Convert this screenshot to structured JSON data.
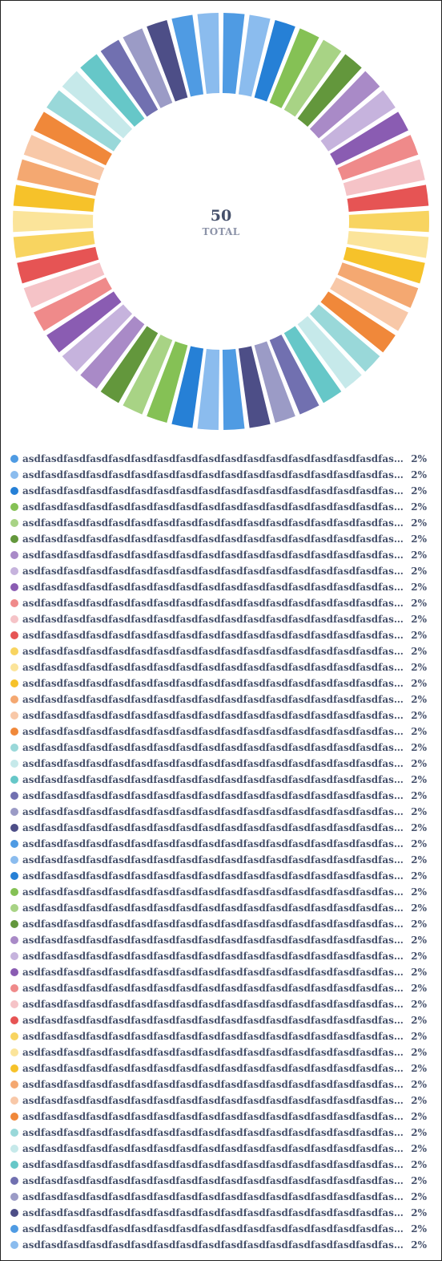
{
  "center": {
    "total": "50",
    "label": "TOTAL"
  },
  "palette": [
    "#4f9be3",
    "#8bbcee",
    "#2680d6",
    "#85c155",
    "#a8d385",
    "#63973c",
    "#a98ac7",
    "#c6b3dd",
    "#8a5cb2",
    "#ef8a8a",
    "#f5c3c7",
    "#e65454",
    "#f8d460",
    "#fbe49a",
    "#f6c22a",
    "#f4a871",
    "#f8c8a8",
    "#f0883a",
    "#99d8d9",
    "#c6e9ea",
    "#66c7c8",
    "#7170b0",
    "#9b9bc6",
    "#4d4e87"
  ],
  "chart_data": {
    "type": "pie",
    "variant": "donut",
    "title": "",
    "categories": [
      "asdfasdfasdfasdfasdfasdfasdfasdfasdfasdfasdfasdfasdfasdfasdfasdfasdfas…",
      "asdfasdfasdfasdfasdfasdfasdfasdfasdfasdfasdfasdfasdfasdfasdfasdfasdfas…",
      "asdfasdfasdfasdfasdfasdfasdfasdfasdfasdfasdfasdfasdfasdfasdfasdfasdfas…",
      "asdfasdfasdfasdfasdfasdfasdfasdfasdfasdfasdfasdfasdfasdfasdfasdfasdfas…",
      "asdfasdfasdfasdfasdfasdfasdfasdfasdfasdfasdfasdfasdfasdfasdfasdfasdfas…",
      "asdfasdfasdfasdfasdfasdfasdfasdfasdfasdfasdfasdfasdfasdfasdfasdfasdfas…",
      "asdfasdfasdfasdfasdfasdfasdfasdfasdfasdfasdfasdfasdfasdfasdfasdfasdfas…",
      "asdfasdfasdfasdfasdfasdfasdfasdfasdfasdfasdfasdfasdfasdfasdfasdfasdfas…",
      "asdfasdfasdfasdfasdfasdfasdfasdfasdfasdfasdfasdfasdfasdfasdfasdfasdfas…",
      "asdfasdfasdfasdfasdfasdfasdfasdfasdfasdfasdfasdfasdfasdfasdfasdfasdfas…",
      "asdfasdfasdfasdfasdfasdfasdfasdfasdfasdfasdfasdfasdfasdfasdfasdfasdfas…",
      "asdfasdfasdfasdfasdfasdfasdfasdfasdfasdfasdfasdfasdfasdfasdfasdfasdfas…",
      "asdfasdfasdfasdfasdfasdfasdfasdfasdfasdfasdfasdfasdfasdfasdfasdfasdfas…",
      "asdfasdfasdfasdfasdfasdfasdfasdfasdfasdfasdfasdfasdfasdfasdfasdfasdfas…",
      "asdfasdfasdfasdfasdfasdfasdfasdfasdfasdfasdfasdfasdfasdfasdfasdfasdfas…",
      "asdfasdfasdfasdfasdfasdfasdfasdfasdfasdfasdfasdfasdfasdfasdfasdfasdfas…",
      "asdfasdfasdfasdfasdfasdfasdfasdfasdfasdfasdfasdfasdfasdfasdfasdfasdfas…",
      "asdfasdfasdfasdfasdfasdfasdfasdfasdfasdfasdfasdfasdfasdfasdfasdfasdfas…",
      "asdfasdfasdfasdfasdfasdfasdfasdfasdfasdfasdfasdfasdfasdfasdfasdfasdfas…",
      "asdfasdfasdfasdfasdfasdfasdfasdfasdfasdfasdfasdfasdfasdfasdfasdfasdfas…",
      "asdfasdfasdfasdfasdfasdfasdfasdfasdfasdfasdfasdfasdfasdfasdfasdfasdfas…",
      "asdfasdfasdfasdfasdfasdfasdfasdfasdfasdfasdfasdfasdfasdfasdfasdfasdfas…",
      "asdfasdfasdfasdfasdfasdfasdfasdfasdfasdfasdfasdfasdfasdfasdfasdfasdfas…",
      "asdfasdfasdfasdfasdfasdfasdfasdfasdfasdfasdfasdfasdfasdfasdfasdfasdfas…",
      "asdfasdfasdfasdfasdfasdfasdfasdfasdfasdfasdfasdfasdfasdfasdfasdfasdfas…",
      "asdfasdfasdfasdfasdfasdfasdfasdfasdfasdfasdfasdfasdfasdfasdfasdfasdfas…",
      "asdfasdfasdfasdfasdfasdfasdfasdfasdfasdfasdfasdfasdfasdfasdfasdfasdfas…",
      "asdfasdfasdfasdfasdfasdfasdfasdfasdfasdfasdfasdfasdfasdfasdfasdfasdfas…",
      "asdfasdfasdfasdfasdfasdfasdfasdfasdfasdfasdfasdfasdfasdfasdfasdfasdfas…",
      "asdfasdfasdfasdfasdfasdfasdfasdfasdfasdfasdfasdfasdfasdfasdfasdfasdfas…",
      "asdfasdfasdfasdfasdfasdfasdfasdfasdfasdfasdfasdfasdfasdfasdfasdfasdfas…",
      "asdfasdfasdfasdfasdfasdfasdfasdfasdfasdfasdfasdfasdfasdfasdfasdfasdfas…",
      "asdfasdfasdfasdfasdfasdfasdfasdfasdfasdfasdfasdfasdfasdfasdfasdfasdfas…",
      "asdfasdfasdfasdfasdfasdfasdfasdfasdfasdfasdfasdfasdfasdfasdfasdfasdfas…",
      "asdfasdfasdfasdfasdfasdfasdfasdfasdfasdfasdfasdfasdfasdfasdfasdfasdfas…",
      "asdfasdfasdfasdfasdfasdfasdfasdfasdfasdfasdfasdfasdfasdfasdfasdfasdfas…",
      "asdfasdfasdfasdfasdfasdfasdfasdfasdfasdfasdfasdfasdfasdfasdfasdfasdfas…",
      "asdfasdfasdfasdfasdfasdfasdfasdfasdfasdfasdfasdfasdfasdfasdfasdfasdfas…",
      "asdfasdfasdfasdfasdfasdfasdfasdfasdfasdfasdfasdfasdfasdfasdfasdfasdfas…",
      "asdfasdfasdfasdfasdfasdfasdfasdfasdfasdfasdfasdfasdfasdfasdfasdfasdfas…",
      "asdfasdfasdfasdfasdfasdfasdfasdfasdfasdfasdfasdfasdfasdfasdfasdfasdfas…",
      "asdfasdfasdfasdfasdfasdfasdfasdfasdfasdfasdfasdfasdfasdfasdfasdfasdfas…",
      "asdfasdfasdfasdfasdfasdfasdfasdfasdfasdfasdfasdfasdfasdfasdfasdfasdfas…",
      "asdfasdfasdfasdfasdfasdfasdfasdfasdfasdfasdfasdfasdfasdfasdfasdfasdfas…",
      "asdfasdfasdfasdfasdfasdfasdfasdfasdfasdfasdfasdfasdfasdfasdfasdfasdfas…",
      "asdfasdfasdfasdfasdfasdfasdfasdfasdfasdfasdfasdfasdfasdfasdfasdfasdfas…",
      "asdfasdfasdfasdfasdfasdfasdfasdfasdfasdfasdfasdfasdfasdfasdfasdfasdfas…",
      "asdfasdfasdfasdfasdfasdfasdfasdfasdfasdfasdfasdfasdfasdfasdfasdfasdfas…",
      "asdfasdfasdfasdfasdfasdfasdfasdfasdfasdfasdfasdfasdfasdfasdfasdfasdfas…",
      "asdfasdfasdfasdfasdfasdfasdfasdfasdfasdfasdfasdfasdfasdfasdfasdfasdfas…"
    ],
    "values": [
      1,
      1,
      1,
      1,
      1,
      1,
      1,
      1,
      1,
      1,
      1,
      1,
      1,
      1,
      1,
      1,
      1,
      1,
      1,
      1,
      1,
      1,
      1,
      1,
      1,
      1,
      1,
      1,
      1,
      1,
      1,
      1,
      1,
      1,
      1,
      1,
      1,
      1,
      1,
      1,
      1,
      1,
      1,
      1,
      1,
      1,
      1,
      1,
      1,
      1
    ],
    "value_labels": [
      "2%",
      "2%",
      "2%",
      "2%",
      "2%",
      "2%",
      "2%",
      "2%",
      "2%",
      "2%",
      "2%",
      "2%",
      "2%",
      "2%",
      "2%",
      "2%",
      "2%",
      "2%",
      "2%",
      "2%",
      "2%",
      "2%",
      "2%",
      "2%",
      "2%",
      "2%",
      "2%",
      "2%",
      "2%",
      "2%",
      "2%",
      "2%",
      "2%",
      "2%",
      "2%",
      "2%",
      "2%",
      "2%",
      "2%",
      "2%",
      "2%",
      "2%",
      "2%",
      "2%",
      "2%",
      "2%",
      "2%",
      "2%",
      "2%",
      "2%"
    ],
    "legend": "bottom"
  }
}
